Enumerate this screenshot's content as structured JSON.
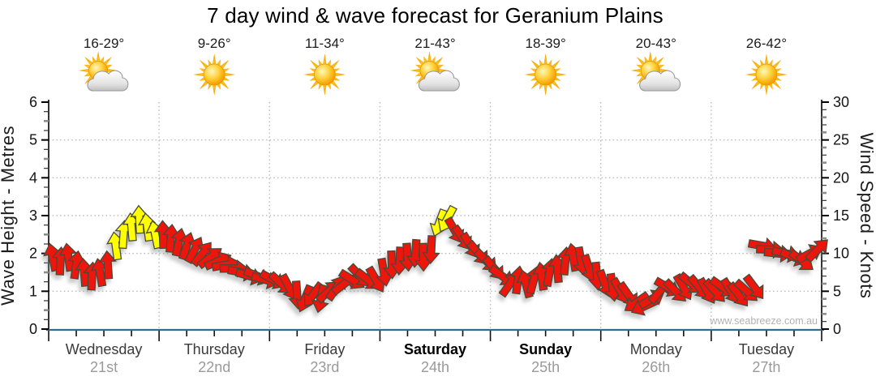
{
  "title": "7 day wind & wave forecast for Geranium Plains",
  "watermark": "www.seabreeze.com.au",
  "days": [
    {
      "name": "Wednesday",
      "date": "21st",
      "temp": "16-29°",
      "icon": "sun-cloud-icon",
      "weekend": false
    },
    {
      "name": "Thursday",
      "date": "22nd",
      "temp": "9-26°",
      "icon": "sun-icon",
      "weekend": false
    },
    {
      "name": "Friday",
      "date": "23rd",
      "temp": "11-34°",
      "icon": "sun-icon",
      "weekend": false
    },
    {
      "name": "Saturday",
      "date": "24th",
      "temp": "21-43°",
      "icon": "sun-cloud-icon",
      "weekend": true
    },
    {
      "name": "Sunday",
      "date": "25th",
      "temp": "18-39°",
      "icon": "sun-icon",
      "weekend": true
    },
    {
      "name": "Monday",
      "date": "26th",
      "temp": "20-43°",
      "icon": "sun-cloud-icon",
      "weekend": false
    },
    {
      "name": "Tuesday",
      "date": "27th",
      "temp": "26-42°",
      "icon": "sun-icon",
      "weekend": false
    }
  ],
  "chart_data": {
    "type": "wind-arrow-series",
    "title": "7 day wind & wave forecast for Geranium Plains",
    "left_axis": {
      "label": "Wave Height - Metres",
      "min": 0,
      "max": 6,
      "major_ticks": [
        0,
        1,
        2,
        3,
        4,
        5,
        6
      ],
      "minor_step": 0.25
    },
    "right_axis": {
      "label": "Wind Speed - Knots",
      "min": 0,
      "max": 30,
      "major_ticks": [
        0,
        5,
        10,
        15,
        20,
        25,
        30
      ],
      "minor_step": 1
    },
    "x_axis": {
      "days": 7,
      "minor_ticks_per_day": 4,
      "grid": "dotted at day boundaries and whole metres"
    },
    "arrow_encoding": "each arrow = [wind_speed_knots_on_right_axis, direction_degrees_clockwise_0_is_up, color r=red y=yellow], 14 arrows per day left to right",
    "colors": {
      "arrow_red": "#ed1607",
      "arrow_yellow": "#ffff00",
      "arrow_outline": "#4a4a3a",
      "x_axis_line": "#2e6f91",
      "grid": "#bbbbbb"
    },
    "arrows": [
      [
        9.5,
        -12,
        "r"
      ],
      [
        9,
        3,
        "r"
      ],
      [
        9.5,
        -8,
        "r"
      ],
      [
        8.5,
        8,
        "r"
      ],
      [
        7.5,
        -5,
        "r"
      ],
      [
        7,
        3,
        "r"
      ],
      [
        7.5,
        -10,
        "r"
      ],
      [
        8.5,
        -4,
        "r"
      ],
      [
        11,
        -8,
        "y"
      ],
      [
        12.5,
        4,
        "y"
      ],
      [
        13.5,
        -5,
        "y"
      ],
      [
        14.5,
        -3,
        "y"
      ],
      [
        13.5,
        -8,
        "y"
      ],
      [
        12.5,
        -12,
        "y"
      ],
      [
        12.5,
        -2,
        "r"
      ],
      [
        12,
        5,
        "r"
      ],
      [
        11.5,
        12,
        "r"
      ],
      [
        11,
        18,
        "r"
      ],
      [
        10.5,
        28,
        "r"
      ],
      [
        10,
        38,
        "r"
      ],
      [
        9.5,
        52,
        "r"
      ],
      [
        9,
        66,
        "r"
      ],
      [
        8.5,
        80,
        "r"
      ],
      [
        8,
        90,
        "r"
      ],
      [
        7.5,
        100,
        "r"
      ],
      [
        7,
        106,
        "r"
      ],
      [
        7,
        112,
        "r"
      ],
      [
        6.5,
        105,
        "r"
      ],
      [
        6.5,
        118,
        "r"
      ],
      [
        6,
        132,
        "r"
      ],
      [
        5.5,
        152,
        "r"
      ],
      [
        4.5,
        176,
        "r"
      ],
      [
        4,
        202,
        "r"
      ],
      [
        4.5,
        216,
        "r"
      ],
      [
        4,
        192,
        "r"
      ],
      [
        5,
        48,
        "r"
      ],
      [
        5.5,
        34,
        "r"
      ],
      [
        6,
        52,
        "r"
      ],
      [
        6.5,
        122,
        "r"
      ],
      [
        7,
        136,
        "r"
      ],
      [
        6.5,
        128,
        "r"
      ],
      [
        6.5,
        150,
        "r"
      ],
      [
        7.5,
        170,
        "r"
      ],
      [
        8.5,
        178,
        "r"
      ],
      [
        9,
        183,
        "r"
      ],
      [
        9.5,
        176,
        "r"
      ],
      [
        10,
        184,
        "r"
      ],
      [
        9.5,
        179,
        "r"
      ],
      [
        10.5,
        183,
        "r"
      ],
      [
        14,
        200,
        "y"
      ],
      [
        14.5,
        208,
        "y"
      ],
      [
        13,
        150,
        "r"
      ],
      [
        12,
        145,
        "r"
      ],
      [
        11,
        148,
        "r"
      ],
      [
        10,
        140,
        "r"
      ],
      [
        9,
        135,
        "r"
      ],
      [
        8,
        140,
        "r"
      ],
      [
        7,
        125,
        "r"
      ],
      [
        6,
        35,
        "r"
      ],
      [
        6.5,
        8,
        "r"
      ],
      [
        6,
        -15,
        "r"
      ],
      [
        6.5,
        15,
        "r"
      ],
      [
        7,
        -8,
        "r"
      ],
      [
        7.5,
        10,
        "r"
      ],
      [
        8,
        -5,
        "r"
      ],
      [
        9,
        5,
        "r"
      ],
      [
        9.5,
        -10,
        "r"
      ],
      [
        9,
        170,
        "r"
      ],
      [
        8,
        163,
        "r"
      ],
      [
        7,
        175,
        "r"
      ],
      [
        6,
        160,
        "r"
      ],
      [
        5.5,
        172,
        "r"
      ],
      [
        5,
        150,
        "r"
      ],
      [
        4.5,
        145,
        "r"
      ],
      [
        3.5,
        235,
        "r"
      ],
      [
        3,
        245,
        "r"
      ],
      [
        4,
        60,
        "r"
      ],
      [
        5,
        40,
        "r"
      ],
      [
        5.5,
        120,
        "r"
      ],
      [
        5,
        135,
        "r"
      ],
      [
        5.5,
        150,
        "r"
      ],
      [
        6,
        130,
        "r"
      ],
      [
        5.5,
        140,
        "r"
      ],
      [
        5,
        150,
        "r"
      ],
      [
        5,
        138,
        "r"
      ],
      [
        5.5,
        125,
        "r"
      ],
      [
        5,
        148,
        "r"
      ],
      [
        4.5,
        142,
        "r"
      ],
      [
        5,
        132,
        "r"
      ],
      [
        5.5,
        143,
        "r"
      ],
      [
        11,
        100,
        "r"
      ],
      [
        10.5,
        92,
        "r"
      ],
      [
        10,
        96,
        "r"
      ],
      [
        10,
        102,
        "r"
      ],
      [
        9.5,
        112,
        "r"
      ],
      [
        9,
        128,
        "r"
      ],
      [
        10,
        62,
        "r"
      ],
      [
        10.5,
        45,
        "r"
      ]
    ]
  }
}
